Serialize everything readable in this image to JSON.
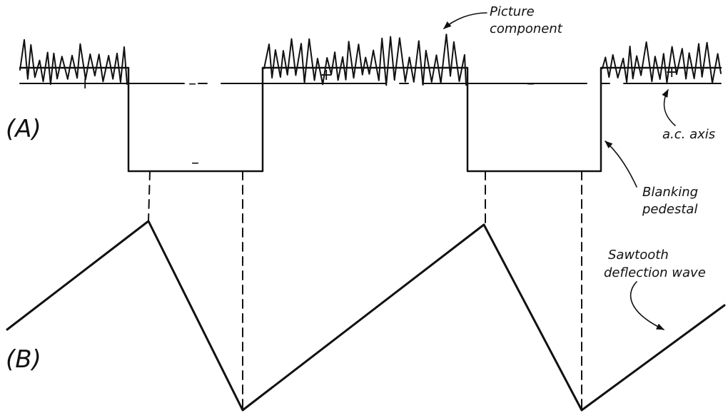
{
  "panel_a": {
    "label": "(A)",
    "picture_component_label_1": "Picture",
    "picture_component_label_2": "component",
    "ac_axis_label": "a.c. axis",
    "blanking_label_1": "Blanking",
    "blanking_label_2": "pedestal",
    "plus_sign": "+",
    "minus_sign": "–"
  },
  "panel_b": {
    "label": "(B)",
    "sawtooth_label_1": "Sawtooth",
    "sawtooth_label_2": "deflection wave"
  },
  "colors": {
    "ink": "#111111",
    "background": "#ffffff"
  }
}
